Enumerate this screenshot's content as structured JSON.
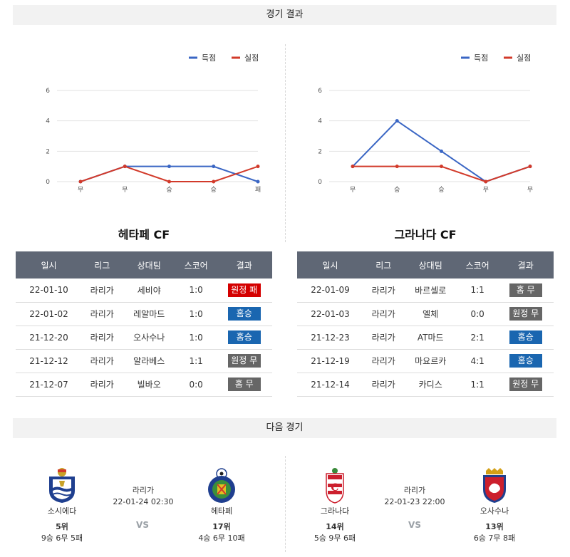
{
  "headers": {
    "results": "경기 결과",
    "next": "다음 경기"
  },
  "legend": {
    "scored": "득점",
    "conceded": "실점"
  },
  "colors": {
    "scored": "#3a66c4",
    "conceded": "#d23a2a",
    "loss": "#d40000",
    "win": "#1a66b0",
    "draw": "#666666",
    "header": "#5f6775"
  },
  "chart_data": [
    {
      "type": "line",
      "categories": [
        "무",
        "무",
        "승",
        "승",
        "패"
      ],
      "ylim": [
        0,
        6
      ],
      "yticks": [
        0,
        2,
        4,
        6
      ],
      "grid": true,
      "legend": "top-right",
      "series": [
        {
          "name": "득점",
          "values": [
            0,
            1,
            1,
            1,
            0
          ]
        },
        {
          "name": "실점",
          "values": [
            0,
            1,
            0,
            0,
            1
          ]
        }
      ]
    },
    {
      "type": "line",
      "categories": [
        "무",
        "승",
        "승",
        "무",
        "무"
      ],
      "ylim": [
        0,
        6
      ],
      "yticks": [
        0,
        2,
        4,
        6
      ],
      "grid": true,
      "legend": "top-right",
      "series": [
        {
          "name": "득점",
          "values": [
            1,
            4,
            2,
            0,
            1
          ]
        },
        {
          "name": "실점",
          "values": [
            1,
            1,
            1,
            0,
            1
          ]
        }
      ]
    }
  ],
  "columns": [
    "일시",
    "리그",
    "상대팀",
    "스코어",
    "결과"
  ],
  "teams": [
    {
      "name": "헤타페 CF",
      "matches": [
        {
          "date": "22-01-10",
          "league": "라리가",
          "opponent": "세비야",
          "score": "1:0",
          "result": "원정 패",
          "kind": "loss"
        },
        {
          "date": "22-01-02",
          "league": "라리가",
          "opponent": "레알마드",
          "score": "1:0",
          "result": "홈승",
          "kind": "win"
        },
        {
          "date": "21-12-20",
          "league": "라리가",
          "opponent": "오사수나",
          "score": "1:0",
          "result": "홈승",
          "kind": "win"
        },
        {
          "date": "21-12-12",
          "league": "라리가",
          "opponent": "알라베스",
          "score": "1:1",
          "result": "원정 무",
          "kind": "draw"
        },
        {
          "date": "21-12-07",
          "league": "라리가",
          "opponent": "빌바오",
          "score": "0:0",
          "result": "홈 무",
          "kind": "draw"
        }
      ]
    },
    {
      "name": "그라나다 CF",
      "matches": [
        {
          "date": "22-01-09",
          "league": "라리가",
          "opponent": "바르셀로",
          "score": "1:1",
          "result": "홈 무",
          "kind": "draw"
        },
        {
          "date": "22-01-03",
          "league": "라리가",
          "opponent": "엘체",
          "score": "0:0",
          "result": "원정 무",
          "kind": "draw"
        },
        {
          "date": "21-12-23",
          "league": "라리가",
          "opponent": "AT마드",
          "score": "2:1",
          "result": "홈승",
          "kind": "win"
        },
        {
          "date": "21-12-19",
          "league": "라리가",
          "opponent": "마요르카",
          "score": "4:1",
          "result": "홈승",
          "kind": "win"
        },
        {
          "date": "21-12-14",
          "league": "라리가",
          "opponent": "카디스",
          "score": "1:1",
          "result": "원정 무",
          "kind": "draw"
        }
      ]
    }
  ],
  "next": [
    {
      "home": {
        "name": "소시에다",
        "rank": "5위",
        "record": "9승 6무 5패",
        "logo": "real-sociedad-logo"
      },
      "away": {
        "name": "헤타페",
        "rank": "17위",
        "record": "4승 6무 10패",
        "logo": "getafe-logo"
      },
      "league": "라리가",
      "datetime": "22-01-24 02:30",
      "vs": "VS"
    },
    {
      "home": {
        "name": "그라나다",
        "rank": "14위",
        "record": "5승 9무 6패",
        "logo": "granada-logo"
      },
      "away": {
        "name": "오사수나",
        "rank": "13위",
        "record": "6승 7무 8패",
        "logo": "osasuna-logo"
      },
      "league": "라리가",
      "datetime": "22-01-23 22:00",
      "vs": "VS"
    }
  ]
}
